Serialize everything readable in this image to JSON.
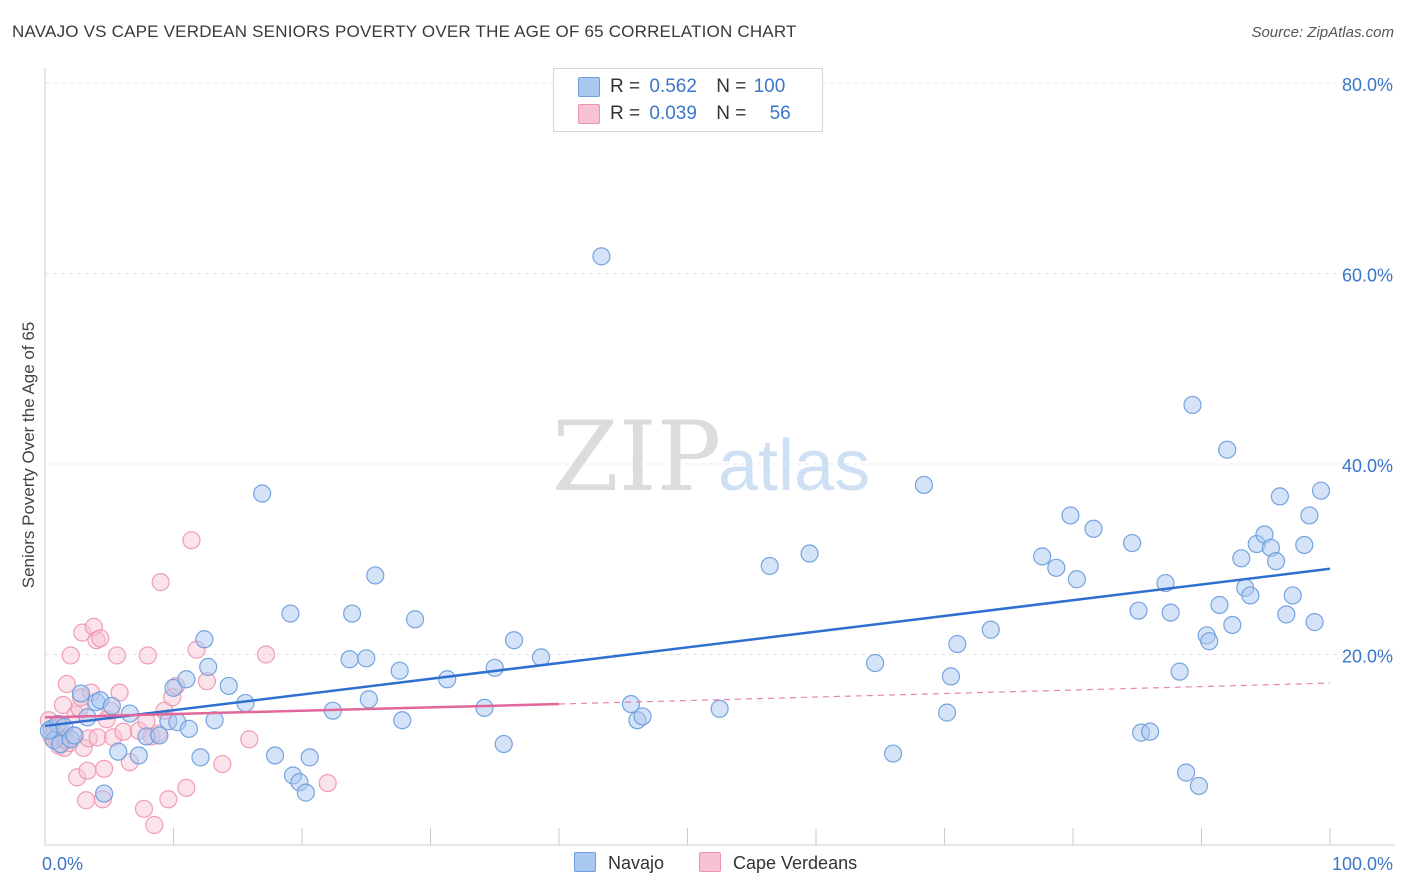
{
  "title": "NAVAJO VS CAPE VERDEAN SENIORS POVERTY OVER THE AGE OF 65 CORRELATION CHART",
  "source": "Source: ZipAtlas.com",
  "watermark": {
    "zip": "ZIP",
    "atlas": "atlas"
  },
  "legend": {
    "rows": [
      {
        "r_label": "R =",
        "r_value": "0.562",
        "n_label": "N =",
        "n_value": "100"
      },
      {
        "r_label": "R =",
        "r_value": "0.039",
        "n_label": "N =",
        "n_value": "56"
      }
    ]
  },
  "bottom_legend": [
    "Navajo",
    "Cape Verdeans"
  ],
  "colors": {
    "navajo_fill": "#a9c8ef",
    "navajo_stroke": "#6f9fdc",
    "navajo_line": "#2f6fcf",
    "cape_fill": "#f7c2d3",
    "cape_stroke": "#ee93b0",
    "cape_line": "#e2679a",
    "axis_label": "#3b76c8",
    "grid": "#e4e4e4"
  },
  "chart_data": {
    "type": "scatter",
    "title": "NAVAJO VS CAPE VERDEAN SENIORS POVERTY OVER THE AGE OF 65 CORRELATION CHART",
    "xlabel": "",
    "ylabel": "Seniors Poverty Over the Age of 65",
    "xlim": [
      0,
      100
    ],
    "ylim": [
      0,
      80
    ],
    "x_tick_labels": [
      "0.0%",
      "100.0%"
    ],
    "y_ticks": [
      20,
      40,
      60,
      80
    ],
    "y_tick_labels": [
      "20.0%",
      "40.0%",
      "60.0%",
      "80.0%"
    ],
    "series": [
      {
        "name": "Navajo",
        "r": 0.562,
        "n": 100,
        "trend": {
          "x0": 0,
          "y0": 12.5,
          "x1": 100,
          "y1": 29.0
        },
        "points": [
          [
            0.5,
            12.2
          ],
          [
            0.7,
            11.0
          ],
          [
            1.0,
            12.7
          ],
          [
            1.2,
            10.6
          ],
          [
            1.5,
            12.4
          ],
          [
            2.0,
            11.1
          ],
          [
            2.3,
            11.5
          ],
          [
            2.8,
            15.9
          ],
          [
            3.3,
            13.4
          ],
          [
            4.0,
            15.0
          ],
          [
            4.3,
            15.2
          ],
          [
            4.6,
            5.4
          ],
          [
            5.2,
            14.6
          ],
          [
            5.7,
            9.8
          ],
          [
            6.6,
            13.8
          ],
          [
            7.3,
            9.4
          ],
          [
            7.9,
            11.4
          ],
          [
            8.9,
            11.5
          ],
          [
            9.6,
            13.0
          ],
          [
            10.0,
            16.5
          ],
          [
            10.3,
            12.9
          ],
          [
            11.0,
            17.4
          ],
          [
            11.2,
            12.2
          ],
          [
            12.1,
            9.2
          ],
          [
            12.4,
            21.6
          ],
          [
            12.7,
            18.7
          ],
          [
            13.2,
            13.1
          ],
          [
            14.3,
            16.7
          ],
          [
            15.6,
            14.9
          ],
          [
            16.9,
            36.9
          ],
          [
            17.9,
            9.4
          ],
          [
            19.1,
            24.3
          ],
          [
            19.3,
            7.3
          ],
          [
            19.8,
            6.6
          ],
          [
            20.3,
            5.5
          ],
          [
            20.6,
            9.2
          ],
          [
            22.4,
            14.1
          ],
          [
            23.7,
            19.5
          ],
          [
            23.9,
            24.3
          ],
          [
            25.0,
            19.6
          ],
          [
            25.2,
            15.3
          ],
          [
            25.7,
            28.3
          ],
          [
            27.6,
            18.3
          ],
          [
            27.8,
            13.1
          ],
          [
            28.8,
            23.7
          ],
          [
            31.3,
            17.4
          ],
          [
            34.2,
            14.4
          ],
          [
            35.0,
            18.6
          ],
          [
            35.7,
            10.6
          ],
          [
            36.5,
            21.5
          ],
          [
            38.6,
            19.7
          ],
          [
            43.3,
            61.8
          ],
          [
            45.6,
            14.8
          ],
          [
            46.1,
            13.1
          ],
          [
            46.5,
            13.5
          ],
          [
            52.5,
            14.3
          ],
          [
            56.4,
            29.3
          ],
          [
            59.5,
            30.6
          ],
          [
            64.6,
            19.1
          ],
          [
            66.0,
            9.6
          ],
          [
            68.4,
            37.8
          ],
          [
            70.2,
            13.9
          ],
          [
            70.5,
            17.7
          ],
          [
            71.0,
            21.1
          ],
          [
            73.6,
            22.6
          ],
          [
            77.6,
            30.3
          ],
          [
            78.7,
            29.1
          ],
          [
            79.8,
            34.6
          ],
          [
            80.3,
            27.9
          ],
          [
            81.6,
            33.2
          ],
          [
            84.6,
            31.7
          ],
          [
            85.1,
            24.6
          ],
          [
            85.3,
            11.8
          ],
          [
            86.0,
            11.9
          ],
          [
            87.2,
            27.5
          ],
          [
            87.6,
            24.4
          ],
          [
            88.3,
            18.2
          ],
          [
            88.8,
            7.6
          ],
          [
            89.3,
            46.2
          ],
          [
            89.8,
            6.2
          ],
          [
            90.4,
            22.0
          ],
          [
            90.6,
            21.4
          ],
          [
            91.4,
            25.2
          ],
          [
            92.0,
            41.5
          ],
          [
            92.4,
            23.1
          ],
          [
            93.1,
            30.1
          ],
          [
            93.4,
            27.0
          ],
          [
            93.8,
            26.2
          ],
          [
            94.3,
            31.6
          ],
          [
            94.9,
            32.6
          ],
          [
            95.4,
            31.2
          ],
          [
            95.8,
            29.8
          ],
          [
            96.1,
            36.6
          ],
          [
            96.6,
            24.2
          ],
          [
            97.1,
            26.2
          ],
          [
            98.0,
            31.5
          ],
          [
            98.4,
            34.6
          ],
          [
            98.8,
            23.4
          ],
          [
            99.3,
            37.2
          ],
          [
            0.3,
            12.0
          ]
        ]
      },
      {
        "name": "Cape Verdeans",
        "r": 0.039,
        "n": 56,
        "trend_solid": {
          "x0": 0,
          "y0": 13.4,
          "x1": 40.0,
          "y1": 14.8
        },
        "trend_dashed": {
          "x0": 40.0,
          "y0": 14.8,
          "x1": 100,
          "y1": 17.0
        },
        "points": [
          [
            0.3,
            13.1
          ],
          [
            0.5,
            11.4
          ],
          [
            0.7,
            12.3
          ],
          [
            0.9,
            11.3
          ],
          [
            1.1,
            10.4
          ],
          [
            1.2,
            12.6
          ],
          [
            1.4,
            14.7
          ],
          [
            1.5,
            10.2
          ],
          [
            1.6,
            11.0
          ],
          [
            1.7,
            16.9
          ],
          [
            1.9,
            10.7
          ],
          [
            2.0,
            19.9
          ],
          [
            2.2,
            11.5
          ],
          [
            2.4,
            13.7
          ],
          [
            2.5,
            7.1
          ],
          [
            2.7,
            14.3
          ],
          [
            2.8,
            15.5
          ],
          [
            2.9,
            22.3
          ],
          [
            3.0,
            10.2
          ],
          [
            3.2,
            4.7
          ],
          [
            3.3,
            7.8
          ],
          [
            3.4,
            11.2
          ],
          [
            3.6,
            16.0
          ],
          [
            3.8,
            22.9
          ],
          [
            4.0,
            21.5
          ],
          [
            4.1,
            11.3
          ],
          [
            4.3,
            21.7
          ],
          [
            4.5,
            4.8
          ],
          [
            4.6,
            8.0
          ],
          [
            4.8,
            13.2
          ],
          [
            5.1,
            14.1
          ],
          [
            5.3,
            11.3
          ],
          [
            5.6,
            19.9
          ],
          [
            5.8,
            16.0
          ],
          [
            6.1,
            11.9
          ],
          [
            6.6,
            8.7
          ],
          [
            7.3,
            12.0
          ],
          [
            7.7,
            3.8
          ],
          [
            7.9,
            13.0
          ],
          [
            8.0,
            19.9
          ],
          [
            8.3,
            11.4
          ],
          [
            8.5,
            2.1
          ],
          [
            8.8,
            11.7
          ],
          [
            9.0,
            27.6
          ],
          [
            9.3,
            14.1
          ],
          [
            9.6,
            4.8
          ],
          [
            9.9,
            15.5
          ],
          [
            10.2,
            16.7
          ],
          [
            11.0,
            6.0
          ],
          [
            11.4,
            32.0
          ],
          [
            11.8,
            20.5
          ],
          [
            12.6,
            17.2
          ],
          [
            13.8,
            8.5
          ],
          [
            15.9,
            11.1
          ],
          [
            17.2,
            20.0
          ],
          [
            22.0,
            6.5
          ]
        ]
      }
    ]
  }
}
